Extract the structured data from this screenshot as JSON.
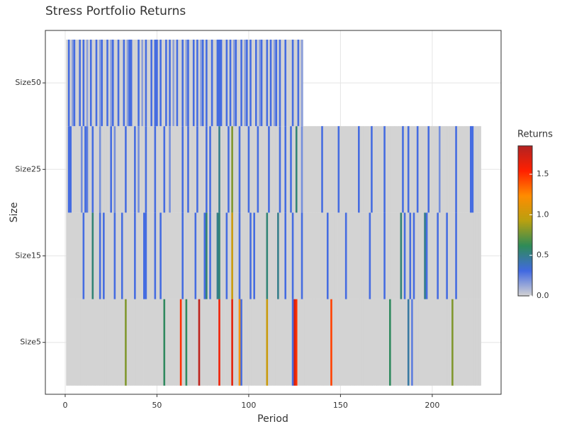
{
  "chart_data": {
    "type": "heatmap",
    "title": "Stress Portfolio Returns",
    "x_label": "Period",
    "y_label": "Size",
    "x": [
      1,
      2,
      3,
      4,
      5,
      6,
      7,
      8,
      9,
      10,
      11,
      12,
      13,
      14,
      15,
      16,
      17,
      18,
      19,
      20,
      21,
      22,
      23,
      24,
      25,
      26,
      27,
      28,
      29,
      30,
      31,
      32,
      33,
      34,
      35,
      36,
      37,
      38,
      39,
      40,
      41,
      42,
      43,
      44,
      45,
      46,
      47,
      48,
      49,
      50,
      51,
      52,
      53,
      54,
      55,
      56,
      57,
      58,
      59,
      60,
      61,
      62,
      63,
      64,
      65,
      66,
      67,
      68,
      69,
      70,
      71,
      72,
      73,
      74,
      75,
      76,
      77,
      78,
      79,
      80,
      81,
      82,
      83,
      84,
      85,
      86,
      87,
      88,
      89,
      90,
      91,
      92,
      93,
      94,
      95,
      96,
      97,
      98,
      99,
      100,
      101,
      102,
      103,
      104,
      105,
      106,
      107,
      108,
      109,
      110,
      111,
      112,
      113,
      114,
      115,
      116,
      117,
      118,
      119,
      120,
      121,
      122,
      123,
      124,
      125,
      126,
      127,
      128,
      129,
      130,
      131,
      132,
      133,
      134,
      135,
      136,
      137,
      138,
      139,
      140,
      141,
      142,
      143,
      144,
      145,
      146,
      147,
      148,
      149,
      150,
      151,
      152,
      153,
      154,
      155,
      156,
      157,
      158,
      159,
      160,
      161,
      162,
      163,
      164,
      165,
      166,
      167,
      168,
      169,
      170,
      171,
      172,
      173,
      174,
      175,
      176,
      177,
      178,
      179,
      180,
      181,
      182,
      183,
      184,
      185,
      186,
      187,
      188,
      189,
      190,
      191,
      192,
      193,
      194,
      195,
      196,
      197,
      198,
      199,
      200,
      201,
      202,
      203,
      204,
      205,
      206,
      207,
      208,
      209,
      210,
      211,
      212,
      213,
      214,
      215,
      216,
      217,
      218,
      219,
      220,
      221,
      222,
      223,
      224,
      225,
      226
    ],
    "series": [
      {
        "name": "Size5",
        "values": [
          0,
          0,
          0,
          0,
          0,
          0,
          0,
          0,
          0,
          0,
          0,
          0,
          0,
          0,
          0,
          0,
          0,
          0,
          0,
          0,
          0,
          0,
          0,
          0,
          0,
          0,
          0,
          0,
          0,
          0,
          0,
          0,
          0.8,
          0,
          0,
          0,
          0,
          0,
          0,
          0,
          0,
          0,
          0,
          0,
          0,
          0,
          0,
          0,
          0,
          0,
          0,
          0,
          0,
          0.6,
          0,
          0,
          0,
          0,
          0,
          0,
          0,
          0,
          1.5,
          0,
          0,
          0.6,
          0,
          0,
          0,
          0,
          0,
          0,
          1.8,
          0,
          0,
          0,
          0,
          0,
          0,
          0,
          0,
          0,
          0,
          1.6,
          0,
          0,
          0,
          0,
          0,
          0,
          1.65,
          0,
          0,
          0,
          1.2,
          0.3,
          0,
          0,
          0,
          0,
          0,
          0,
          0,
          0,
          0,
          0,
          0,
          0,
          0,
          1.0,
          0,
          0,
          0,
          0,
          0,
          0,
          0,
          0,
          0,
          0,
          0,
          0,
          0,
          0.3,
          1.7,
          1.5,
          0,
          0,
          0,
          0,
          0,
          0,
          0,
          0,
          0,
          0,
          0,
          0,
          0,
          0,
          0,
          0,
          0,
          0,
          1.45,
          0,
          0,
          0,
          0,
          0,
          0,
          0,
          0,
          0,
          0,
          0,
          0,
          0,
          0,
          0,
          0,
          0,
          0,
          0,
          0,
          0,
          0,
          0,
          0,
          0,
          0,
          0,
          0,
          0,
          0,
          0,
          0.6,
          0,
          0,
          0,
          0,
          0,
          0,
          0,
          0,
          0,
          0.45,
          0,
          0.25,
          0,
          0,
          0,
          0,
          0,
          0,
          0,
          0,
          0,
          0,
          0,
          0,
          0,
          0,
          0,
          0,
          0,
          0,
          0,
          0,
          0,
          0.8,
          0,
          0,
          0,
          0,
          0,
          0,
          0,
          0,
          0,
          0,
          0,
          0,
          0,
          0,
          0
        ]
      },
      {
        "name": "Size15",
        "values": [
          0,
          0,
          0,
          0,
          0,
          0,
          0,
          0,
          0,
          0.3,
          0,
          0,
          0,
          0,
          0.55,
          0,
          0,
          0,
          0.3,
          0,
          0.3,
          0,
          0,
          0,
          0,
          0,
          0.3,
          0,
          0,
          0,
          0.3,
          0,
          0,
          0,
          0,
          0,
          0,
          0.3,
          0,
          0,
          0,
          0,
          0.3,
          0.3,
          0,
          0,
          0,
          0,
          0.3,
          0,
          0,
          0.3,
          0,
          0,
          0,
          0,
          0,
          0,
          0,
          0,
          0,
          0,
          0,
          0.3,
          0,
          0,
          0,
          0,
          0,
          0,
          0.3,
          0,
          0,
          0,
          0,
          0.3,
          0.55,
          0,
          0.3,
          0,
          0,
          0,
          0.5,
          0.55,
          0,
          0,
          0,
          0.3,
          0,
          0,
          1.0,
          0,
          0,
          0,
          0.3,
          0,
          0,
          0,
          0,
          0,
          0.3,
          0,
          0.3,
          0,
          0,
          0,
          0,
          0,
          0,
          0.55,
          0,
          0,
          0,
          0,
          0,
          0.5,
          0,
          0,
          0,
          0.3,
          0,
          0,
          0,
          0.3,
          0,
          0,
          0,
          0,
          0.3,
          0,
          0,
          0,
          0,
          0,
          0,
          0,
          0,
          0,
          0,
          0,
          0,
          0,
          0.3,
          0,
          0,
          0,
          0,
          0,
          0,
          0,
          0,
          0,
          0.3,
          0,
          0,
          0,
          0,
          0,
          0,
          0,
          0,
          0,
          0,
          0,
          0,
          0.3,
          0,
          0,
          0,
          0,
          0,
          0,
          0,
          0.3,
          0,
          0,
          0,
          0,
          0,
          0,
          0,
          0,
          0.55,
          0,
          0.3,
          0,
          0,
          0.3,
          0,
          0.3,
          0,
          0,
          0,
          0,
          0,
          0.5,
          0.3,
          0,
          0,
          0,
          0,
          0,
          0.3,
          0,
          0,
          0,
          0,
          0.3,
          0,
          0,
          0,
          0,
          0.3,
          0,
          0,
          0,
          0,
          0,
          0,
          0,
          0,
          0,
          0,
          0,
          0,
          0
        ]
      },
      {
        "name": "Size25",
        "values": [
          0,
          0.3,
          0.3,
          0,
          0,
          0,
          0,
          0,
          0.2,
          0,
          0.3,
          0.25,
          0,
          0,
          0.3,
          0,
          0,
          0,
          0.2,
          0,
          0,
          0,
          0,
          0,
          0.3,
          0,
          0.2,
          0,
          0,
          0,
          0,
          0,
          0.3,
          0,
          0,
          0,
          0,
          0.3,
          0,
          0.2,
          0,
          0,
          0,
          0.3,
          0,
          0,
          0,
          0,
          0.3,
          0,
          0,
          0,
          0,
          0.3,
          0,
          0,
          0.2,
          0,
          0,
          0,
          0,
          0,
          0,
          0.3,
          0,
          0,
          0.3,
          0,
          0,
          0,
          0,
          0.3,
          0,
          0,
          0,
          0,
          0.3,
          0,
          0.3,
          0,
          0,
          0,
          0,
          0.5,
          0,
          0,
          0,
          0,
          0.3,
          0,
          0.8,
          0,
          0,
          0,
          0.3,
          0,
          0,
          0,
          0,
          0.3,
          0,
          0,
          0,
          0,
          0.3,
          0,
          0,
          0,
          0,
          0,
          0.3,
          0,
          0,
          0,
          0,
          0,
          0.3,
          0,
          0,
          0.3,
          0,
          0,
          0.3,
          0,
          0,
          0.55,
          0,
          0,
          0.2,
          0,
          0,
          0,
          0,
          0,
          0,
          0,
          0,
          0,
          0,
          0.3,
          0,
          0,
          0,
          0,
          0,
          0,
          0,
          0,
          0.3,
          0,
          0,
          0,
          0,
          0,
          0,
          0,
          0,
          0,
          0,
          0.3,
          0,
          0,
          0,
          0,
          0,
          0,
          0.3,
          0,
          0,
          0,
          0,
          0,
          0,
          0.3,
          0,
          0,
          0,
          0,
          0,
          0,
          0,
          0,
          0,
          0.3,
          0,
          0,
          0.3,
          0,
          0,
          0,
          0,
          0.3,
          0,
          0,
          0,
          0,
          0,
          0.3,
          0,
          0,
          0,
          0,
          0,
          0.2,
          0,
          0,
          0,
          0,
          0,
          0,
          0,
          0,
          0.3,
          0,
          0,
          0,
          0,
          0,
          0,
          0,
          0.3,
          0.3,
          0,
          0,
          0,
          0
        ]
      },
      {
        "name": "Size50",
        "values": [
          0,
          0.3,
          0,
          0.15,
          0.3,
          0,
          0,
          0.3,
          0,
          0.3,
          0,
          0.15,
          0,
          0.3,
          0,
          0,
          0.3,
          0,
          0.15,
          0.3,
          0,
          0,
          0.3,
          0,
          0.15,
          0.3,
          0,
          0,
          0.3,
          0,
          0,
          0.3,
          0,
          0.15,
          0.3,
          0.3,
          0,
          0,
          0,
          0.3,
          0,
          0.15,
          0,
          0.3,
          0,
          0,
          0.3,
          0,
          0.3,
          0.3,
          0,
          0.3,
          0,
          0,
          0.3,
          0,
          0.3,
          0,
          0.15,
          0,
          0.3,
          0,
          0,
          0.3,
          0,
          0.15,
          0.3,
          0,
          0,
          0.3,
          0,
          0.3,
          0,
          0.15,
          0.3,
          0,
          0.3,
          0,
          0,
          0.3,
          0,
          0,
          0.3,
          0.3,
          0.3,
          0,
          0,
          0.3,
          0,
          0.3,
          0,
          0.15,
          0.3,
          0,
          0,
          0.3,
          0,
          0.15,
          0.3,
          0,
          0.3,
          0,
          0,
          0.3,
          0,
          0.15,
          0.3,
          0,
          0,
          0.3,
          0,
          0.3,
          0,
          0.15,
          0.3,
          0,
          0.3,
          0,
          0,
          0.3,
          0,
          0,
          0,
          0.3,
          0,
          0,
          0.3,
          0,
          0.15,
          null,
          null,
          null,
          null,
          null,
          null,
          null,
          null,
          null,
          null,
          null,
          null,
          null,
          null,
          null,
          null,
          null,
          null,
          null,
          null,
          null,
          null,
          null,
          null,
          null,
          null,
          null,
          null,
          null,
          null,
          null,
          null,
          null,
          null,
          null,
          null,
          null,
          null,
          null,
          null,
          null,
          null,
          null,
          null,
          null,
          null,
          null,
          null,
          null,
          null,
          null,
          null,
          null,
          null,
          null,
          null,
          null,
          null,
          null,
          null,
          null,
          null,
          null,
          null,
          null,
          null,
          null,
          null,
          null,
          null,
          null,
          null,
          null,
          null,
          null,
          null,
          null,
          null,
          null,
          null,
          null,
          null,
          null,
          null,
          null,
          null,
          null,
          null,
          null,
          null,
          null,
          null,
          null,
          null,
          null,
          null,
          null
        ]
      }
    ],
    "xlim": [
      -10.8,
      237.5
    ],
    "xticks": [
      0,
      50,
      100,
      150,
      200
    ],
    "grid": true,
    "colorbar_title": "Returns",
    "zlim": [
      0,
      1.85
    ],
    "colorbar_ticks": [
      {
        "value": 0,
        "label": "0.0"
      },
      0.5,
      {
        "value": 1,
        "label": "1.0"
      },
      1.5
    ],
    "colorscale": [
      "#d3d3d3",
      "#4169e1",
      "#2e8b57",
      "#b8a010",
      "#ff8c00",
      "#ff2000",
      "#b22222"
    ]
  }
}
